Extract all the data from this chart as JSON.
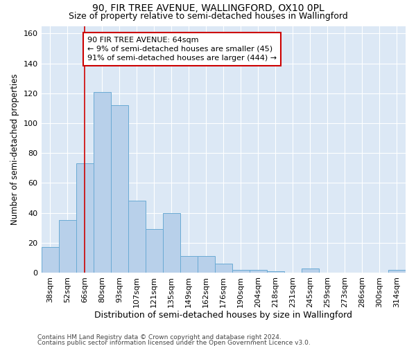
{
  "title": "90, FIR TREE AVENUE, WALLINGFORD, OX10 0PL",
  "subtitle": "Size of property relative to semi-detached houses in Wallingford",
  "xlabel_bottom": "Distribution of semi-detached houses by size in Wallingford",
  "ylabel": "Number of semi-detached properties",
  "footer_line1": "Contains HM Land Registry data © Crown copyright and database right 2024.",
  "footer_line2": "Contains public sector information licensed under the Open Government Licence v3.0.",
  "categories": [
    "38sqm",
    "52sqm",
    "66sqm",
    "80sqm",
    "93sqm",
    "107sqm",
    "121sqm",
    "135sqm",
    "149sqm",
    "162sqm",
    "176sqm",
    "190sqm",
    "204sqm",
    "218sqm",
    "231sqm",
    "245sqm",
    "259sqm",
    "273sqm",
    "286sqm",
    "300sqm",
    "314sqm"
  ],
  "values": [
    17,
    35,
    73,
    121,
    112,
    48,
    29,
    40,
    11,
    11,
    6,
    2,
    2,
    1,
    0,
    3,
    0,
    0,
    0,
    0,
    2
  ],
  "bar_color": "#b8d0ea",
  "bar_edge_color": "#6aaad4",
  "vline_x": 2.0,
  "vline_color": "#cc0000",
  "annotation_text": "90 FIR TREE AVENUE: 64sqm\n← 9% of semi-detached houses are smaller (45)\n91% of semi-detached houses are larger (444) →",
  "annotation_box_color": "#cc0000",
  "annotation_text_color": "#000000",
  "ylim": [
    0,
    165
  ],
  "yticks": [
    0,
    20,
    40,
    60,
    80,
    100,
    120,
    140,
    160
  ],
  "bg_color": "#ffffff",
  "plot_bg_color": "#dce8f5",
  "grid_color": "#ffffff",
  "title_fontsize": 10,
  "subtitle_fontsize": 9,
  "tick_fontsize": 8,
  "ylabel_fontsize": 8.5,
  "footer_fontsize": 6.5,
  "xlabel_fontsize": 9
}
